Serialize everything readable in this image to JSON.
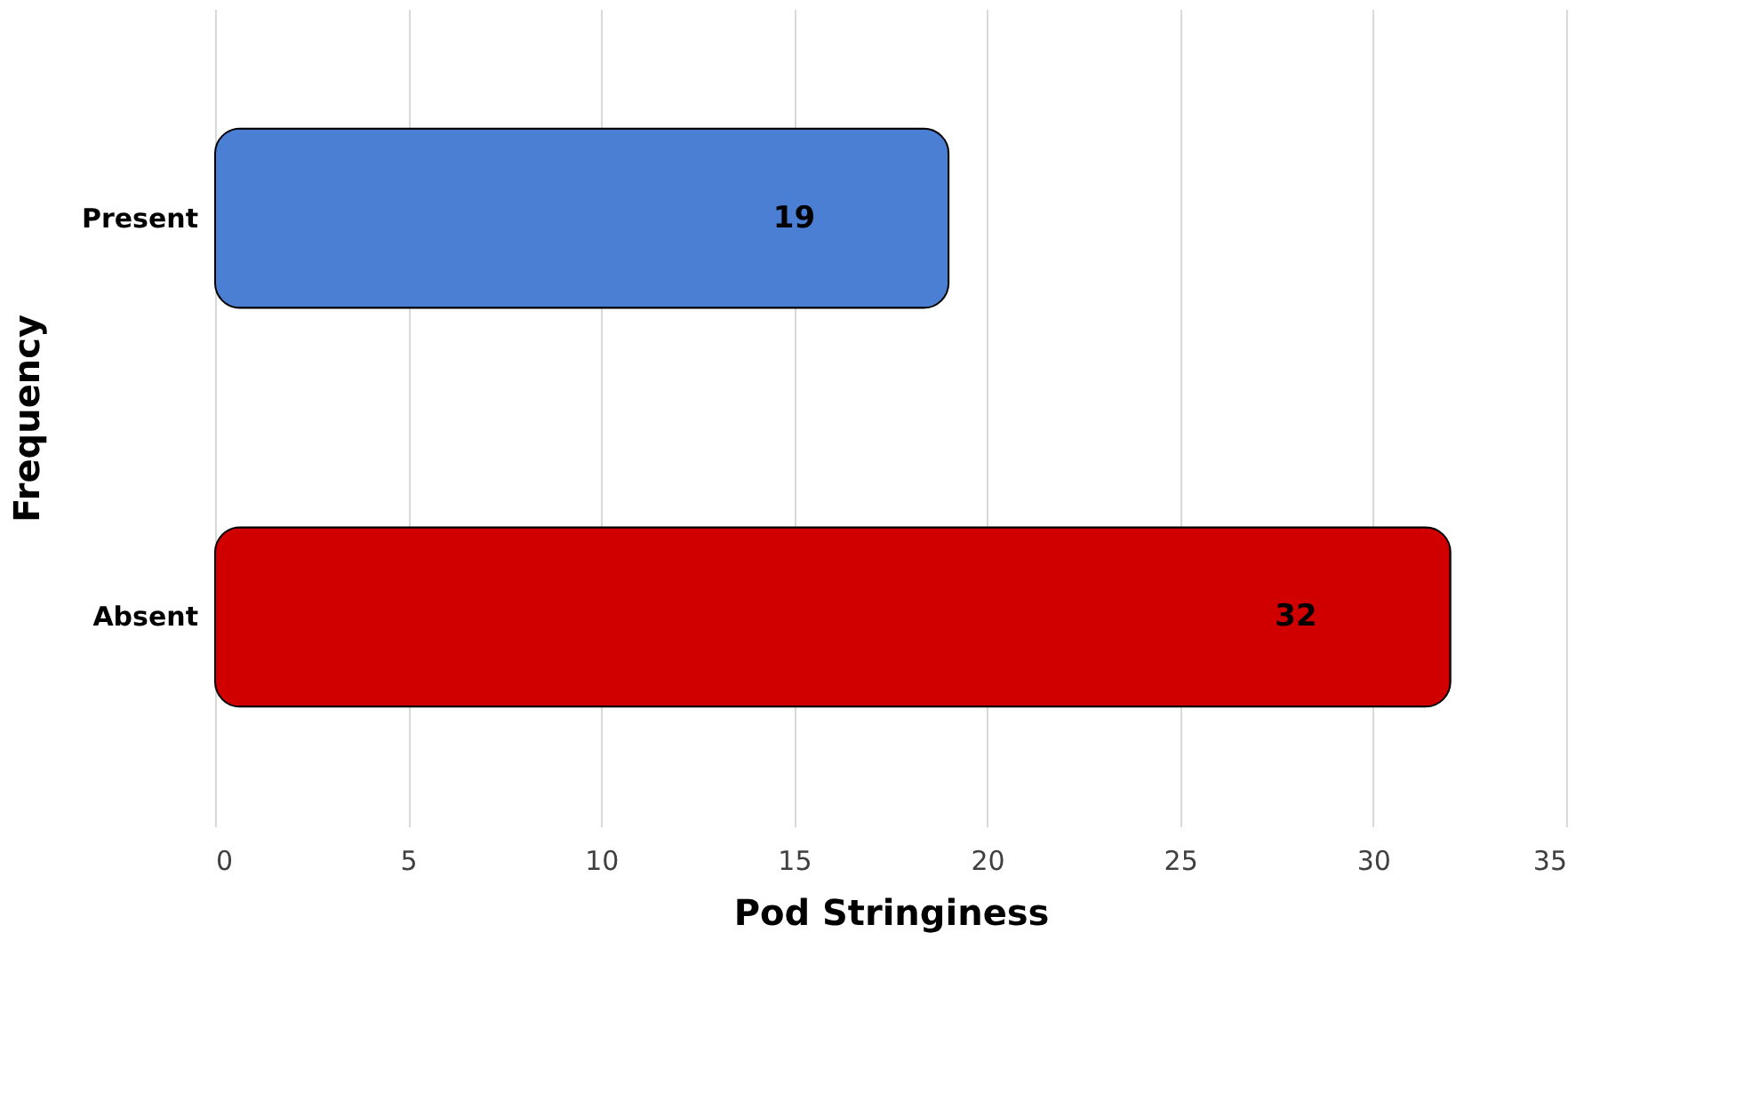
{
  "chart_data": {
    "type": "bar",
    "orientation": "horizontal",
    "xlabel": "Pod Stringiness",
    "ylabel": "Frequency",
    "categories": [
      "Present",
      "Absent"
    ],
    "values": [
      19,
      32
    ],
    "colors": [
      "#4a7fd4",
      "#d00000"
    ],
    "xlim": [
      0,
      35
    ],
    "xticks": [
      0,
      5,
      10,
      15,
      20,
      25,
      30,
      35
    ],
    "grid": "x",
    "data_labels": true
  }
}
